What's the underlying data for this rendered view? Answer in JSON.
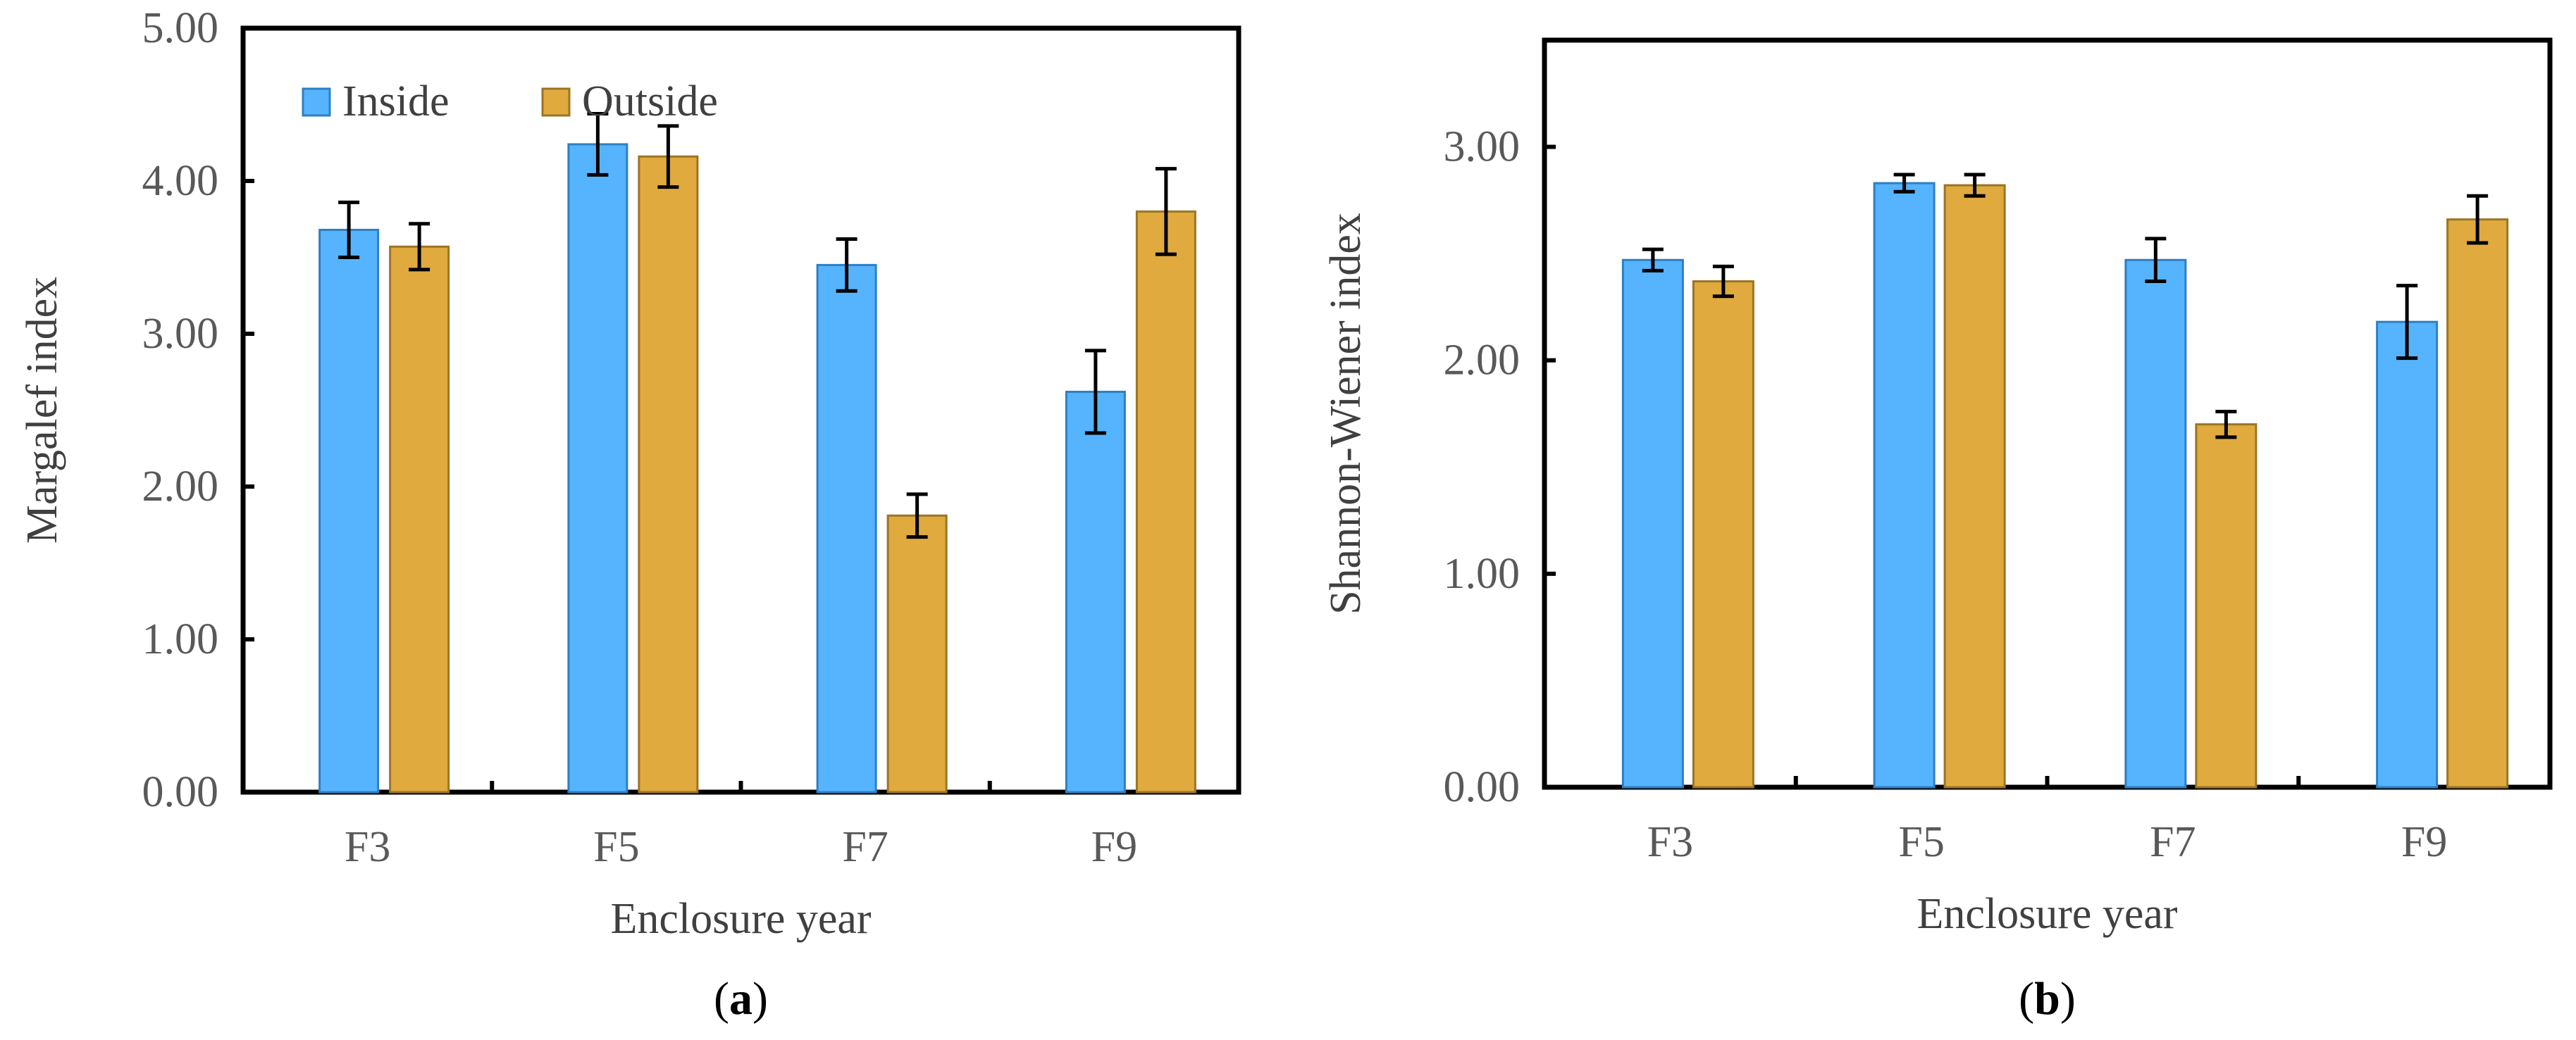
{
  "chart_data": [
    {
      "type": "bar",
      "panel_label": "a",
      "title": "",
      "xlabel": "Enclosure year",
      "ylabel": "Margalef index",
      "categories": [
        "F3",
        "F5",
        "F7",
        "F9"
      ],
      "ylim": [
        0,
        5
      ],
      "yticks": [
        0,
        1,
        2,
        3,
        4,
        5
      ],
      "ytick_labels": [
        "0.00",
        "1.00",
        "2.00",
        "3.00",
        "4.00",
        "5.00"
      ],
      "legend_position": "top-left",
      "series": [
        {
          "name": "Inside",
          "color": "#56B4FF",
          "edge": "#2E7FC2",
          "values": [
            3.68,
            4.24,
            3.45,
            2.62
          ],
          "errors": [
            0.18,
            0.2,
            0.17,
            0.27
          ]
        },
        {
          "name": "Outside",
          "color": "#E0AA3E",
          "edge": "#9C7424",
          "values": [
            3.57,
            4.16,
            1.81,
            3.8
          ],
          "errors": [
            0.15,
            0.2,
            0.14,
            0.28
          ]
        }
      ]
    },
    {
      "type": "bar",
      "panel_label": "b",
      "title": "",
      "xlabel": "Enclosure year",
      "ylabel": "Shannon-Wiener index",
      "categories": [
        "F3",
        "F5",
        "F7",
        "F9"
      ],
      "ylim": [
        0,
        3.5
      ],
      "yticks": [
        0,
        1,
        2,
        3
      ],
      "ytick_labels": [
        "0.00",
        "1.00",
        "2.00",
        "3.00"
      ],
      "legend_position": "none",
      "series": [
        {
          "name": "Inside",
          "color": "#56B4FF",
          "edge": "#2E7FC2",
          "values": [
            2.47,
            2.83,
            2.47,
            2.18
          ],
          "errors": [
            0.05,
            0.04,
            0.1,
            0.17
          ]
        },
        {
          "name": "Outside",
          "color": "#E0AA3E",
          "edge": "#9C7424",
          "values": [
            2.37,
            2.82,
            1.7,
            2.66
          ],
          "errors": [
            0.07,
            0.05,
            0.06,
            0.11
          ]
        }
      ]
    }
  ]
}
